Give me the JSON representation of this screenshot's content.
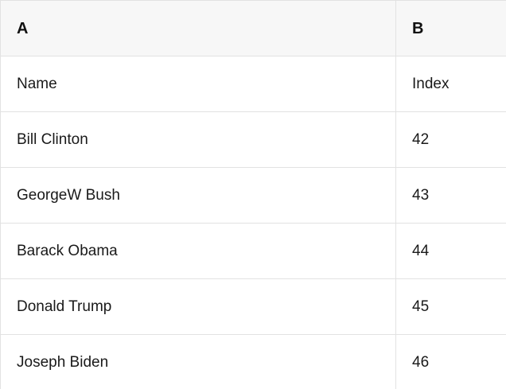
{
  "table": {
    "column_headers": [
      {
        "label": "A"
      },
      {
        "label": "B"
      }
    ],
    "rows": [
      {
        "a": "Name",
        "b": "Index"
      },
      {
        "a": "Bill Clinton",
        "b": "42"
      },
      {
        "a": "GeorgeW Bush",
        "b": "43"
      },
      {
        "a": "Barack Obama",
        "b": "44"
      },
      {
        "a": "Donald Trump",
        "b": "45"
      },
      {
        "a": "Joseph Biden",
        "b": "46"
      }
    ],
    "colors": {
      "header_background": "#f7f7f7",
      "cell_background": "#ffffff",
      "border": "#e2e2e2",
      "text": "#1a1a1a"
    }
  }
}
